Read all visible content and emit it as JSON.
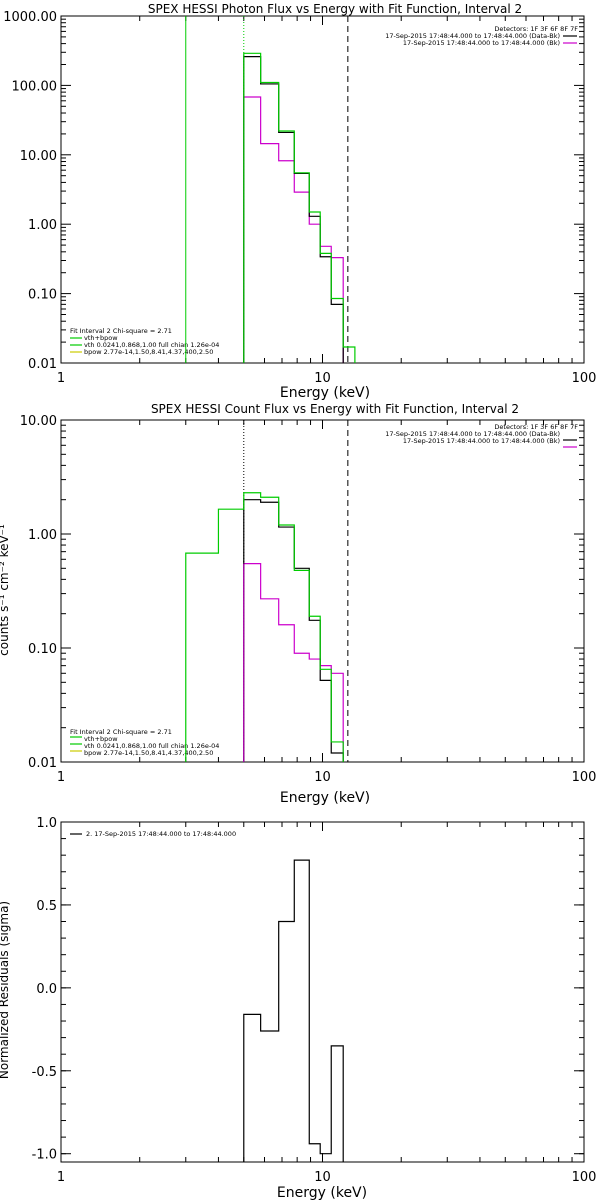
{
  "colors": {
    "data": "#000000",
    "background": "#cc00cc",
    "vth": "#00cc00",
    "bpow": "#cccc00",
    "total": "#00cc00",
    "dotted_marker": "#000000"
  },
  "chart_data": [
    {
      "type": "line",
      "title": "SPEX HESSI Photon Flux vs Energy with Fit Function, Interval 2",
      "xlabel": "Energy (keV)",
      "ylabel": "",
      "xscale": "log",
      "yscale": "log",
      "xlim": [
        1,
        100
      ],
      "ylim": [
        0.01,
        1000
      ],
      "xticks": [
        {
          "v": 1,
          "label": "1"
        },
        {
          "v": 10,
          "label": "10"
        },
        {
          "v": 100,
          "label": "100"
        }
      ],
      "yticks": [
        {
          "v": 0.01,
          "label": "0.01"
        },
        {
          "v": 0.1,
          "label": "0.10"
        },
        {
          "v": 1,
          "label": "1.00"
        },
        {
          "v": 10,
          "label": "10.00"
        },
        {
          "v": 100,
          "label": "100.00"
        },
        {
          "v": 1000,
          "label": "1000.00"
        }
      ],
      "vlines": [
        {
          "x": 3.0,
          "style": "solid",
          "color": "vth"
        },
        {
          "x": 5.0,
          "style": "dotted",
          "color": "vth"
        },
        {
          "x": 12.5,
          "style": "dashed",
          "color": "data"
        }
      ],
      "legend_right": {
        "line1": "Detectors: 1F 3F 6F 8F 7F",
        "items": [
          {
            "text": "17-Sep-2015 17:48:44.000 to 17:48:44.000 (Data-Bk)",
            "color": "data"
          },
          {
            "text": "17-Sep-2015 17:48:44.000 to 17:48:44.000 (Bk)",
            "color": "background"
          }
        ]
      },
      "legend_left": {
        "line1": "Fit Interval 2   Chi-square = 2.71",
        "items": [
          {
            "text": "vth+bpow",
            "color": "total"
          },
          {
            "text": "vth 0.0241,0.868,1.00  full chian 1.26e-04",
            "color": "vth"
          },
          {
            "text": "bpow 2.77e-14,1.50,8.41,4.37,400,2.50",
            "color": "bpow"
          }
        ]
      },
      "x_edges": [
        5.0,
        5.8,
        6.8,
        7.8,
        8.9,
        9.8,
        10.8,
        12.0,
        13.3
      ],
      "series": [
        {
          "name": "Data-Bk",
          "color": "data",
          "values": [
            260,
            105,
            21,
            5.4,
            1.3,
            0.34,
            0.07
          ]
        },
        {
          "name": "Bk",
          "color": "background",
          "values": [
            68,
            14.5,
            8.2,
            2.9,
            1.0,
            0.48,
            0.33
          ]
        },
        {
          "name": "vth+bpow",
          "color": "total",
          "values": [
            290,
            110,
            22,
            5.5,
            1.5,
            0.38,
            0.085,
            0.017
          ]
        }
      ]
    },
    {
      "type": "line",
      "title": "SPEX HESSI Count Flux vs Energy with Fit Function, Interval 2",
      "xlabel": "Energy (keV)",
      "ylabel": "counts s⁻¹ cm⁻² keV⁻¹",
      "xscale": "log",
      "yscale": "log",
      "xlim": [
        1,
        100
      ],
      "ylim": [
        0.01,
        10
      ],
      "xticks": [
        {
          "v": 1,
          "label": "1"
        },
        {
          "v": 10,
          "label": "10"
        },
        {
          "v": 100,
          "label": "100"
        }
      ],
      "yticks": [
        {
          "v": 0.01,
          "label": "0.01"
        },
        {
          "v": 0.1,
          "label": "0.10"
        },
        {
          "v": 1,
          "label": "1.00"
        },
        {
          "v": 10,
          "label": "10.00"
        }
      ],
      "vlines": [
        {
          "x": 5.0,
          "style": "dotted",
          "color": "data"
        },
        {
          "x": 12.5,
          "style": "dashed",
          "color": "data"
        }
      ],
      "legend_right": {
        "line1": "Detectors: 1F 3F 6F 8F 7F",
        "items": [
          {
            "text": "17-Sep-2015 17:48:44.000 to 17:48:44.000 (Data-Bk)",
            "color": "data"
          },
          {
            "text": "17-Sep-2015 17:48:44.000 to 17:48:44.000 (Bk)",
            "color": "background"
          }
        ]
      },
      "legend_left": {
        "line1": "Fit Interval 2   Chi-square = 2.71",
        "items": [
          {
            "text": "vth+bpow",
            "color": "total"
          },
          {
            "text": "vth 0.0241,0.868,1.00  full chian 1.26e-04",
            "color": "vth"
          },
          {
            "text": "bpow 2.77e-14,1.50,8.41,4.37,400,2.50",
            "color": "bpow"
          }
        ]
      },
      "total_edges": [
        3.0,
        4.0,
        5.0,
        5.8,
        6.8,
        7.8,
        8.9,
        9.8,
        10.8,
        12.0
      ],
      "data_edges": [
        5.0,
        5.8,
        6.8,
        7.8,
        8.9,
        9.8,
        10.8,
        12.0
      ],
      "series": [
        {
          "name": "Data-Bk",
          "color": "data",
          "values": [
            2.0,
            1.9,
            1.15,
            0.5,
            0.175,
            0.052,
            0.012
          ]
        },
        {
          "name": "Bk",
          "color": "background",
          "values": [
            0.55,
            0.27,
            0.16,
            0.09,
            0.08,
            0.07,
            0.06
          ]
        },
        {
          "name": "vth+bpow",
          "color": "total",
          "values": [
            0.68,
            1.65,
            2.3,
            2.1,
            1.2,
            0.48,
            0.19,
            0.065,
            0.015
          ]
        }
      ]
    },
    {
      "type": "line",
      "title": "",
      "xlabel": "Energy (keV)",
      "ylabel": "Normalized Residuals (sigma)",
      "xscale": "log",
      "yscale": "linear",
      "xlim": [
        1,
        100
      ],
      "ylim": [
        -1.05,
        1.0
      ],
      "xticks": [
        {
          "v": 1,
          "label": "1"
        },
        {
          "v": 10,
          "label": "10"
        },
        {
          "v": 100,
          "label": "100"
        }
      ],
      "yticks": [
        {
          "v": -1.0,
          "label": "-1.0"
        },
        {
          "v": -0.5,
          "label": "-0.5"
        },
        {
          "v": 0.0,
          "label": "0.0"
        },
        {
          "v": 0.5,
          "label": "0.5"
        },
        {
          "v": 1.0,
          "label": "1.0"
        }
      ],
      "legend_left": {
        "items": [
          {
            "text": "2. 17-Sep-2015 17:48:44.000 to 17:48:44.000",
            "color": "data"
          }
        ]
      },
      "x_edges": [
        5.0,
        5.8,
        6.8,
        7.8,
        8.9,
        9.8,
        10.8,
        12.0
      ],
      "series": [
        {
          "name": "residuals",
          "color": "data",
          "values": [
            -0.16,
            -0.26,
            0.4,
            0.77,
            -0.94,
            -1.0,
            -0.35
          ]
        }
      ]
    }
  ]
}
